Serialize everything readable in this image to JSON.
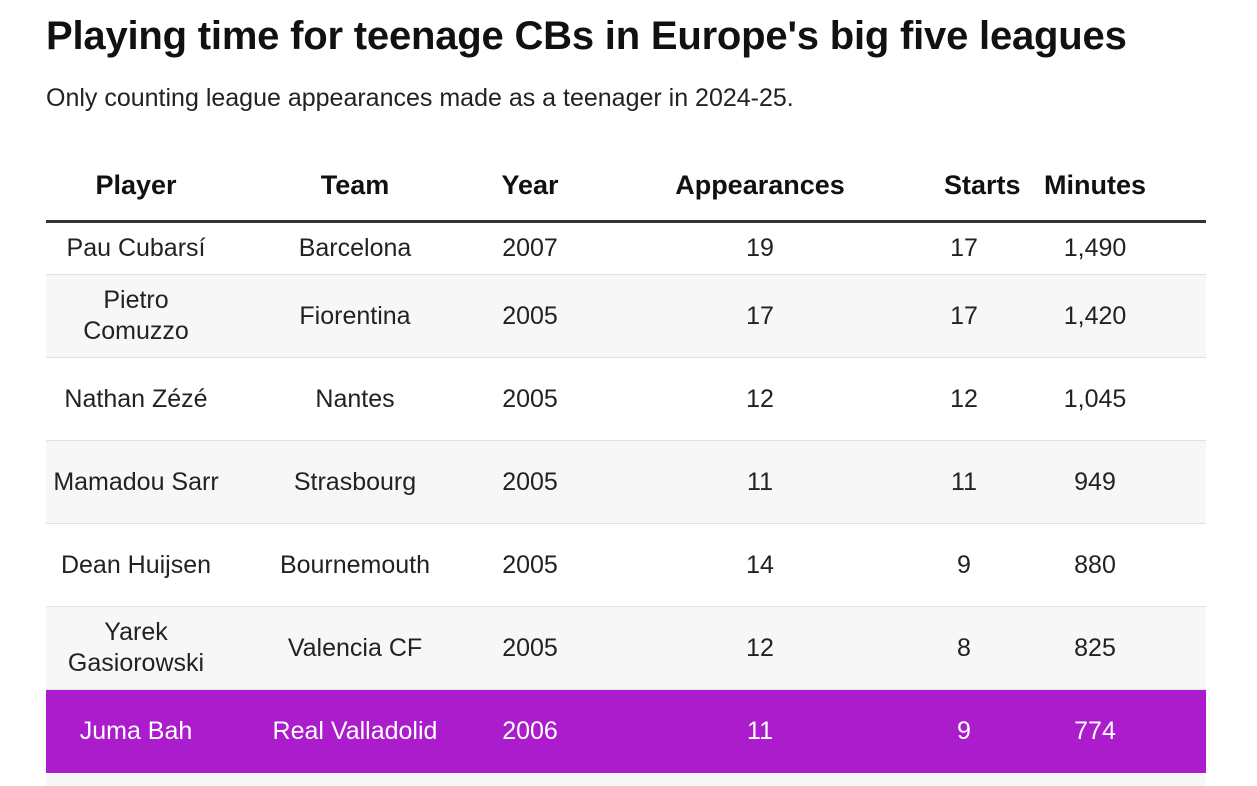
{
  "chart_data": {
    "type": "table",
    "title": "Playing time for teenage CBs in Europe's big five leagues",
    "subtitle": "Only counting league appearances made as a teenager in 2024-25.",
    "columns": [
      "Player",
      "Team",
      "Year",
      "Appearances",
      "Starts",
      "Minutes"
    ],
    "rows": [
      {
        "player": "Pau Cubarsí",
        "team": "Barcelona",
        "year": "2007",
        "appearances": "19",
        "starts": "17",
        "minutes": "1,490",
        "highlight": false
      },
      {
        "player": "Pietro Comuzzo",
        "team": "Fiorentina",
        "year": "2005",
        "appearances": "17",
        "starts": "17",
        "minutes": "1,420",
        "highlight": false
      },
      {
        "player": "Nathan Zézé",
        "team": "Nantes",
        "year": "2005",
        "appearances": "12",
        "starts": "12",
        "minutes": "1,045",
        "highlight": false
      },
      {
        "player": "Mamadou Sarr",
        "team": "Strasbourg",
        "year": "2005",
        "appearances": "11",
        "starts": "11",
        "minutes": "949",
        "highlight": false
      },
      {
        "player": "Dean Huijsen",
        "team": "Bournemouth",
        "year": "2005",
        "appearances": "14",
        "starts": "9",
        "minutes": "880",
        "highlight": false
      },
      {
        "player": "Yarek Gasiorowski",
        "team": "Valencia CF",
        "year": "2005",
        "appearances": "12",
        "starts": "8",
        "minutes": "825",
        "highlight": false
      },
      {
        "player": "Juma Bah",
        "team": "Real Valladolid",
        "year": "2006",
        "appearances": "11",
        "starts": "9",
        "minutes": "774",
        "highlight": true
      }
    ],
    "highlight_color": "#aa1ccc"
  }
}
